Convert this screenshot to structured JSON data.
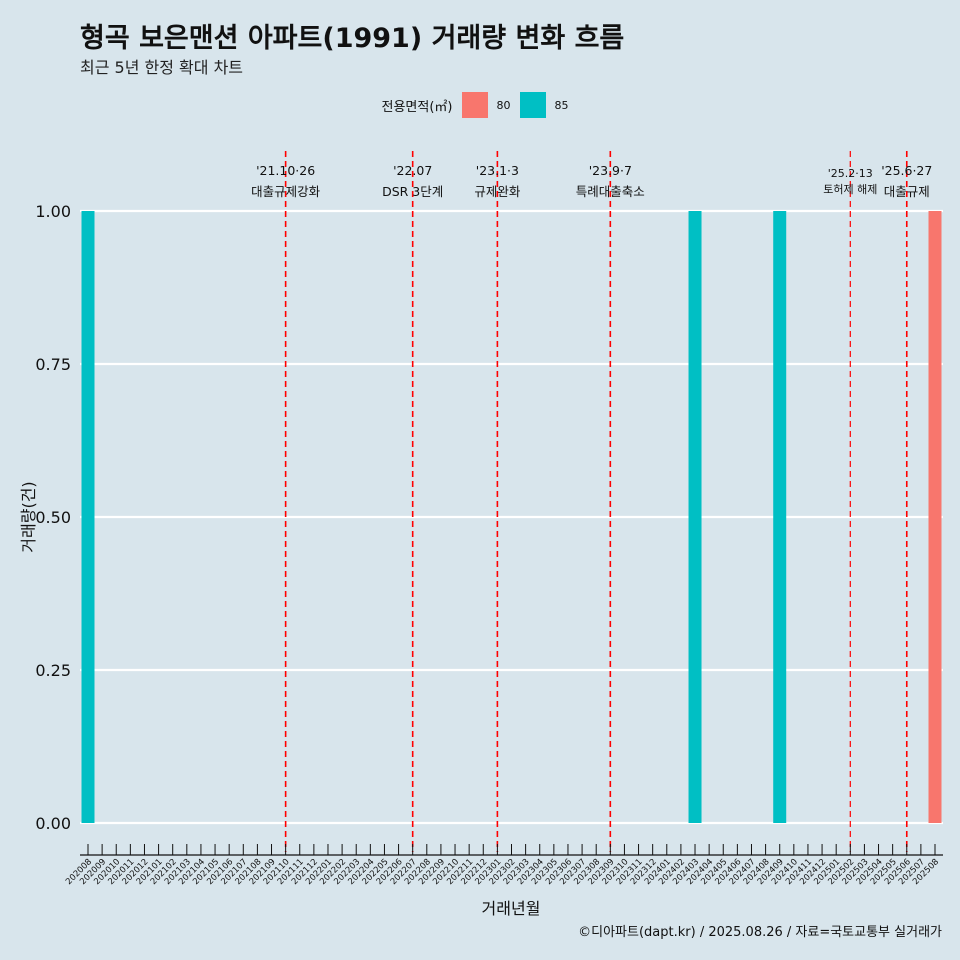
{
  "title": "형곡 보은맨션 아파트(1991) 거래량 변화 흐름",
  "subtitle": "최근 5년 한정 확대 차트",
  "legend": {
    "title": "전용면적(㎡)",
    "items": [
      {
        "label": "80",
        "color": "#f8766d"
      },
      {
        "label": "85",
        "color": "#00bfc4"
      }
    ]
  },
  "caption": "©디아파트(dapt.kr) / 2025.08.26 / 자료=국토교통부 실거래가",
  "chart_data": {
    "type": "bar",
    "xlabel": "거래년월",
    "ylabel": "거래량(건)",
    "ylim": [
      0,
      1
    ],
    "yticks": [
      "0.00",
      "0.25",
      "0.50",
      "0.75",
      "1.00"
    ],
    "categories": [
      "202008",
      "202009",
      "202010",
      "202011",
      "202012",
      "202101",
      "202102",
      "202103",
      "202104",
      "202105",
      "202106",
      "202107",
      "202108",
      "202109",
      "202110",
      "202111",
      "202112",
      "202201",
      "202202",
      "202203",
      "202204",
      "202205",
      "202206",
      "202207",
      "202208",
      "202209",
      "202210",
      "202211",
      "202212",
      "202301",
      "202302",
      "202303",
      "202304",
      "202305",
      "202306",
      "202307",
      "202308",
      "202309",
      "202310",
      "202311",
      "202312",
      "202401",
      "202402",
      "202403",
      "202404",
      "202405",
      "202406",
      "202407",
      "202408",
      "202409",
      "202410",
      "202411",
      "202412",
      "202501",
      "202502",
      "202503",
      "202504",
      "202505",
      "202506",
      "202507",
      "202508"
    ],
    "series": [
      {
        "name": "80",
        "color": "#f8766d",
        "points": [
          {
            "x": "202508",
            "y": 1
          }
        ]
      },
      {
        "name": "85",
        "color": "#00bfc4",
        "points": [
          {
            "x": "202008",
            "y": 1
          },
          {
            "x": "202403",
            "y": 1
          },
          {
            "x": "202409",
            "y": 1
          }
        ]
      }
    ],
    "annotations": [
      {
        "x": "202110",
        "date": "'21.10·26",
        "text": "대출규제강화"
      },
      {
        "x": "202207",
        "date": "'22.07",
        "text": "DSR 3단계"
      },
      {
        "x": "202301",
        "date": "'23.1·3",
        "text": "규제완화"
      },
      {
        "x": "202309",
        "date": "'23.9·7",
        "text": "특례대출축소"
      },
      {
        "x": "202502",
        "date": "'25.2·13",
        "text": "토허제 해제",
        "small": true
      },
      {
        "x": "202506",
        "date": "'25.6·27",
        "text": "대출규제"
      }
    ],
    "grid": "horizontal",
    "legend_position": "top"
  }
}
